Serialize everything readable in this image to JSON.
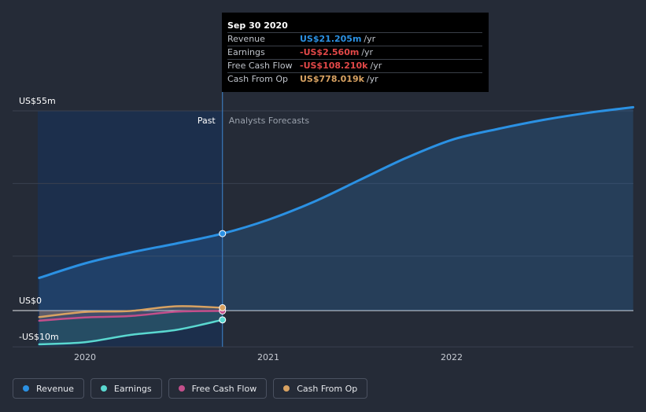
{
  "chart_data": {
    "type": "line",
    "x_unit": "year",
    "x_ticks": [
      "2020",
      "2021",
      "2022"
    ],
    "y_ticks": [
      "US$55m",
      "US$0",
      "-US$10m"
    ],
    "ylim": [
      -10,
      55
    ],
    "xlim": [
      2019.75,
      2022.99
    ],
    "region_labels": {
      "past": "Past",
      "forecast": "Analysts Forecasts"
    },
    "divider_x": 2020.75,
    "series": [
      {
        "name": "Revenue",
        "color": "#2b91e3",
        "x": [
          2019.75,
          2020.0,
          2020.25,
          2020.5,
          2020.75,
          2021.0,
          2021.25,
          2021.5,
          2021.75,
          2022.0,
          2022.25,
          2022.5,
          2022.75,
          2022.99
        ],
        "y": [
          9.0,
          13.0,
          16.0,
          18.5,
          21.2,
          25.0,
          30.0,
          36.0,
          42.0,
          47.0,
          50.0,
          52.5,
          54.5,
          56.0
        ]
      },
      {
        "name": "Earnings",
        "color": "#5ad8d0",
        "x": [
          2019.75,
          2020.0,
          2020.25,
          2020.5,
          2020.75
        ],
        "y": [
          -9.3,
          -8.7,
          -6.7,
          -5.3,
          -2.56
        ]
      },
      {
        "name": "Free Cash Flow",
        "color": "#c34f8b",
        "x": [
          2019.75,
          2020.0,
          2020.25,
          2020.5,
          2020.75
        ],
        "y": [
          -2.8,
          -1.9,
          -1.5,
          -0.3,
          -0.108
        ]
      },
      {
        "name": "Cash From Op",
        "color": "#d8a262",
        "x": [
          2019.75,
          2020.0,
          2020.25,
          2020.5,
          2020.75
        ],
        "y": [
          -1.8,
          -0.4,
          -0.1,
          1.2,
          0.778
        ]
      }
    ]
  },
  "tooltip": {
    "date": "Sep 30 2020",
    "rows": [
      {
        "label": "Revenue",
        "value": "US$21.205m",
        "unit": "/yr",
        "color": "#2b91e3"
      },
      {
        "label": "Earnings",
        "value": "-US$2.560m",
        "unit": "/yr",
        "color": "#e34848"
      },
      {
        "label": "Free Cash Flow",
        "value": "-US$108.210k",
        "unit": "/yr",
        "color": "#e34848"
      },
      {
        "label": "Cash From Op",
        "value": "US$778.019k",
        "unit": "/yr",
        "color": "#d8a262"
      }
    ]
  },
  "legend": [
    {
      "label": "Revenue",
      "color": "#2b91e3"
    },
    {
      "label": "Earnings",
      "color": "#5ad8d0"
    },
    {
      "label": "Free Cash Flow",
      "color": "#c34f8b"
    },
    {
      "label": "Cash From Op",
      "color": "#d8a262"
    }
  ]
}
